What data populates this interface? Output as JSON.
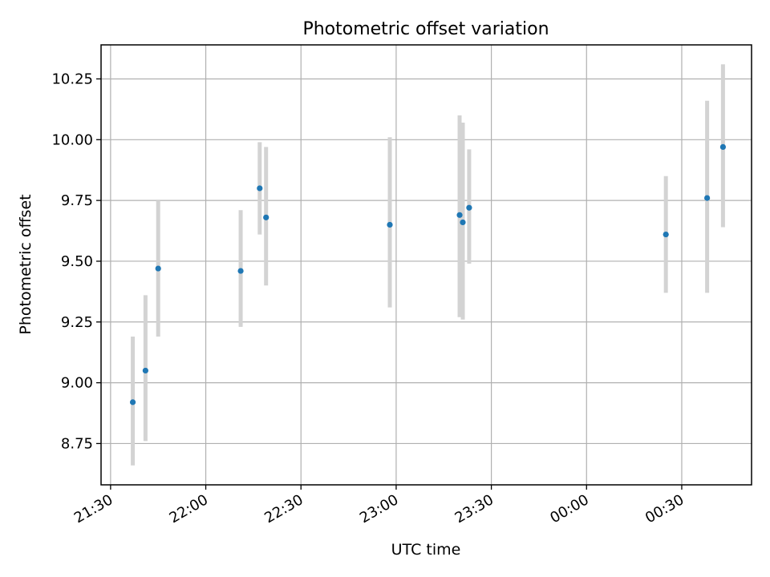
{
  "chart_data": {
    "type": "scatter",
    "title": "Photometric offset variation",
    "xlabel": "UTC time",
    "ylabel": "Photometric offset",
    "x_axis": {
      "kind": "time",
      "min": "21:27",
      "max": "00:52",
      "ticks": [
        "21:30",
        "22:00",
        "22:30",
        "23:00",
        "23:30",
        "00:00",
        "00:30"
      ]
    },
    "y_axis": {
      "min": 8.58,
      "max": 10.39,
      "ticks": [
        "8.75",
        "9.00",
        "9.25",
        "9.50",
        "9.75",
        "10.00",
        "10.25"
      ]
    },
    "grid": true,
    "marker_color": "#1f77b4",
    "errorbar_color": "#d3d3d3",
    "points": [
      {
        "time": "21:37",
        "y": 8.92,
        "ylow": 8.66,
        "yhigh": 9.19
      },
      {
        "time": "21:41",
        "y": 9.05,
        "ylow": 8.76,
        "yhigh": 9.36
      },
      {
        "time": "21:45",
        "y": 9.47,
        "ylow": 9.19,
        "yhigh": 9.75
      },
      {
        "time": "22:11",
        "y": 9.46,
        "ylow": 9.23,
        "yhigh": 9.71
      },
      {
        "time": "22:17",
        "y": 9.8,
        "ylow": 9.61,
        "yhigh": 9.99
      },
      {
        "time": "22:19",
        "y": 9.68,
        "ylow": 9.4,
        "yhigh": 9.97
      },
      {
        "time": "22:58",
        "y": 9.65,
        "ylow": 9.31,
        "yhigh": 10.01
      },
      {
        "time": "23:20",
        "y": 9.69,
        "ylow": 9.27,
        "yhigh": 10.1
      },
      {
        "time": "23:21",
        "y": 9.66,
        "ylow": 9.26,
        "yhigh": 10.07
      },
      {
        "time": "23:23",
        "y": 9.72,
        "ylow": 9.49,
        "yhigh": 9.96
      },
      {
        "time": "00:25",
        "y": 9.61,
        "ylow": 9.37,
        "yhigh": 9.85
      },
      {
        "time": "00:38",
        "y": 9.76,
        "ylow": 9.37,
        "yhigh": 10.16
      },
      {
        "time": "00:43",
        "y": 9.97,
        "ylow": 9.64,
        "yhigh": 10.31
      }
    ]
  }
}
